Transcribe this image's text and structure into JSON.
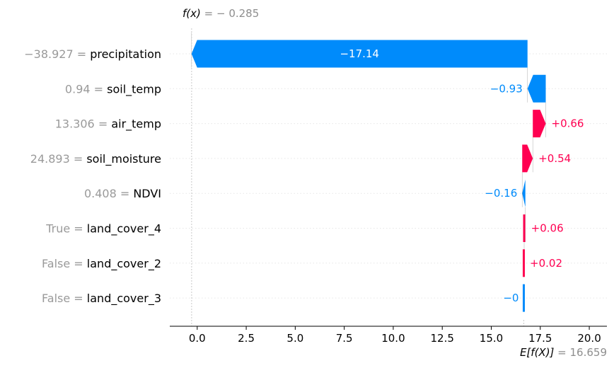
{
  "chart_data": {
    "type": "waterfall",
    "base_value": 16.659,
    "base_label_prefix": "E[f(X)]",
    "base_value_text": "16.659",
    "output_value": -0.285,
    "output_label_prefix": "f(x)",
    "output_value_text": "− 0.285",
    "xlim": [
      -1.4,
      20.9
    ],
    "xticks": [
      0.0,
      2.5,
      5.0,
      7.5,
      10.0,
      12.5,
      15.0,
      17.5,
      20.0
    ],
    "xtick_labels": [
      "0.0",
      "2.5",
      "5.0",
      "7.5",
      "10.0",
      "12.5",
      "15.0",
      "17.5",
      "20.0"
    ],
    "features": [
      {
        "name": "precipitation",
        "value": "−38.927",
        "contribution": -17.14,
        "label": "−17.14",
        "label_inside": true
      },
      {
        "name": "soil_temp",
        "value": "0.94",
        "contribution": -0.93,
        "label": "−0.93",
        "label_inside": false
      },
      {
        "name": "air_temp",
        "value": "13.306",
        "contribution": 0.66,
        "label": "+0.66",
        "label_inside": false
      },
      {
        "name": "soil_moisture",
        "value": "24.893",
        "contribution": 0.54,
        "label": "+0.54",
        "label_inside": false
      },
      {
        "name": "NDVI",
        "value": "0.408",
        "contribution": -0.16,
        "label": "−0.16",
        "label_inside": false
      },
      {
        "name": "land_cover_4",
        "value": "True",
        "contribution": 0.06,
        "label": "+0.06",
        "label_inside": false
      },
      {
        "name": "land_cover_2",
        "value": "False",
        "contribution": 0.02,
        "label": "+0.02",
        "label_inside": false
      },
      {
        "name": "land_cover_3",
        "value": "False",
        "contribution": -0.0,
        "label": "−0",
        "label_inside": false
      }
    ],
    "colors": {
      "positive": "#ff0051",
      "negative": "#008bfb",
      "inside_label": "#ffffff",
      "grid": "#e6e6e6",
      "guide": "#bbbbbb"
    }
  }
}
